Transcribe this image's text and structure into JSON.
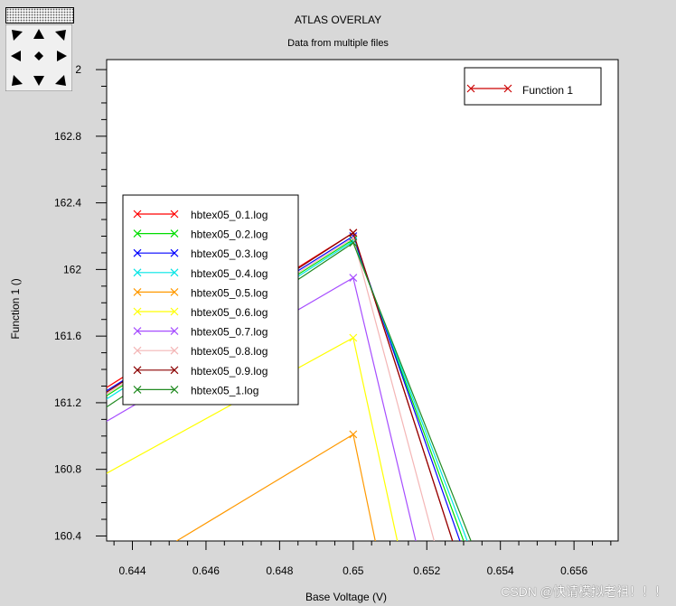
{
  "window": {
    "title": "ATLAS OVERLAY",
    "subtitle": "Data from multiple files"
  },
  "watermark": "CSDN @快请模拟老祖！！！",
  "colors": {
    "background": "#d8d8d8",
    "plot_area": "#ffffff"
  },
  "controls": {
    "pan_icons": [
      "arrow-up-left-icon",
      "arrow-up-icon",
      "arrow-up-right-icon",
      "arrow-left-icon",
      "center-diamond-icon",
      "arrow-right-icon",
      "arrow-down-left-icon",
      "arrow-down-icon",
      "arrow-down-right-icon"
    ]
  },
  "chart_data": {
    "type": "line",
    "title": "ATLAS OVERLAY",
    "subtitle": "Data from multiple files",
    "xlabel": "Base Voltage (V)",
    "ylabel": "Function 1 ()",
    "xlim": [
      0.6433,
      0.6572
    ],
    "ylim": [
      160.37,
      163.26
    ],
    "x_ticks": [
      "0.644",
      "0.646",
      "0.648",
      "0.65",
      "0.652",
      "0.654",
      "0.656"
    ],
    "y_ticks": [
      "160.4",
      "160.8",
      "161.2",
      "161.6",
      "162",
      "162.4",
      "162.8",
      "2"
    ],
    "legend_top": {
      "label": "Function 1",
      "color": "#cc0000",
      "position": "top-right"
    },
    "legend_files_position": "middle-left",
    "series": [
      {
        "name": "hbtex05_0.1.log",
        "color": "#ff0000",
        "points": [
          [
            0.643,
            161.25
          ],
          [
            0.65,
            162.22
          ],
          [
            0.6527,
            160.37
          ]
        ]
      },
      {
        "name": "hbtex05_0.2.log",
        "color": "#00dd00",
        "points": [
          [
            0.643,
            161.2
          ],
          [
            0.65,
            162.18
          ],
          [
            0.653,
            160.37
          ]
        ]
      },
      {
        "name": "hbtex05_0.3.log",
        "color": "#0000ff",
        "points": [
          [
            0.643,
            161.23
          ],
          [
            0.65,
            162.2
          ],
          [
            0.6529,
            160.37
          ]
        ]
      },
      {
        "name": "hbtex05_0.4.log",
        "color": "#00e5e5",
        "points": [
          [
            0.643,
            161.18
          ],
          [
            0.65,
            162.17
          ],
          [
            0.6531,
            160.37
          ]
        ]
      },
      {
        "name": "hbtex05_0.5.log",
        "color": "#ff9900",
        "points": [
          [
            0.6452,
            160.37
          ],
          [
            0.65,
            161.01
          ],
          [
            0.6506,
            160.37
          ]
        ]
      },
      {
        "name": "hbtex05_0.6.log",
        "color": "#ffff00",
        "points": [
          [
            0.643,
            160.74
          ],
          [
            0.65,
            161.59
          ],
          [
            0.6512,
            160.37
          ]
        ]
      },
      {
        "name": "hbtex05_0.7.log",
        "color": "#a64dff",
        "points": [
          [
            0.643,
            161.05
          ],
          [
            0.65,
            161.95
          ],
          [
            0.6517,
            160.37
          ]
        ]
      },
      {
        "name": "hbtex05_0.8.log",
        "color": "#f4b6b6",
        "points": [
          [
            0.643,
            161.21
          ],
          [
            0.65,
            162.19
          ],
          [
            0.6522,
            160.37
          ]
        ]
      },
      {
        "name": "hbtex05_0.9.log",
        "color": "#8b0000",
        "points": [
          [
            0.643,
            161.22
          ],
          [
            0.65,
            162.22
          ],
          [
            0.6527,
            160.37
          ]
        ]
      },
      {
        "name": "hbtex05_1.log",
        "color": "#228b22",
        "points": [
          [
            0.643,
            161.13
          ],
          [
            0.65,
            162.16
          ],
          [
            0.6532,
            160.37
          ]
        ]
      }
    ]
  }
}
